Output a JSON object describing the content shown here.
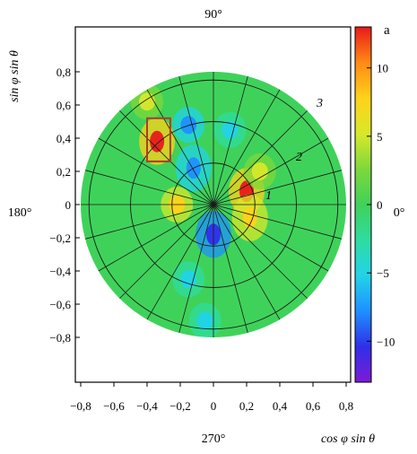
{
  "figure": {
    "panel_letter": "a",
    "direction_labels": {
      "top": "90°",
      "left": "180°",
      "bottom": "270°",
      "right": "0°"
    },
    "ring_labels": [
      "1",
      "2",
      "3"
    ]
  },
  "colors": {
    "colormap": [
      "#7d1bd6",
      "#2f2fe8",
      "#1e90ff",
      "#22d3e8",
      "#2fdca0",
      "#3fd25a",
      "#7ed83a",
      "#d8e82a",
      "#ffd21a",
      "#ff8a14",
      "#e81a1a"
    ],
    "grid": "#1a1a1a",
    "highlight_box": "#b03a2e"
  },
  "chart_data": {
    "type": "heatmap",
    "title": "",
    "xlabel": "cos φ sin θ",
    "ylabel": "sin φ sin θ",
    "xlim": [
      -0.8,
      0.8
    ],
    "ylim": [
      -0.8,
      0.8
    ],
    "xticks": [
      "−0,8",
      "−0,6",
      "−0,4",
      "−0,2",
      "0",
      "0,2",
      "0,4",
      "0,6",
      "0,8"
    ],
    "yticks": [
      "−0,8",
      "−0,6",
      "−0,4",
      "−0,2",
      "0",
      "0,2",
      "0,4",
      "0,6",
      "0,8"
    ],
    "tick_values": [
      -0.8,
      -0.6,
      -0.4,
      -0.2,
      0,
      0.2,
      0.4,
      0.6,
      0.8
    ],
    "colorbar": {
      "range": [
        -13,
        13
      ],
      "ticks": [
        10,
        5,
        0,
        -5,
        -10
      ],
      "tick_labels": [
        "10",
        "5",
        "0",
        "−5",
        "−10"
      ]
    },
    "polar_grid": {
      "ring_radii": [
        0.25,
        0.5,
        0.75
      ],
      "spoke_step_deg": 15
    },
    "hotspots": [
      {
        "x": 0.2,
        "y": 0.08,
        "value": 12
      },
      {
        "x": 0.22,
        "y": -0.08,
        "value": 9
      },
      {
        "x": -0.34,
        "y": 0.38,
        "value": 12
      },
      {
        "x": -0.22,
        "y": 0.0,
        "value": 8
      },
      {
        "x": 0.28,
        "y": 0.2,
        "value": 6
      },
      {
        "x": -0.4,
        "y": 0.62,
        "value": 5
      },
      {
        "x": 0.0,
        "y": -0.18,
        "value": -11
      },
      {
        "x": -0.12,
        "y": 0.22,
        "value": -9
      },
      {
        "x": -0.15,
        "y": 0.48,
        "value": -7
      },
      {
        "x": -0.15,
        "y": -0.45,
        "value": -6
      },
      {
        "x": 0.1,
        "y": 0.45,
        "value": -5
      },
      {
        "x": -0.05,
        "y": -0.7,
        "value": -4
      }
    ],
    "highlight_region": {
      "x": [
        -0.4,
        -0.26
      ],
      "y": [
        0.26,
        0.52
      ]
    }
  }
}
